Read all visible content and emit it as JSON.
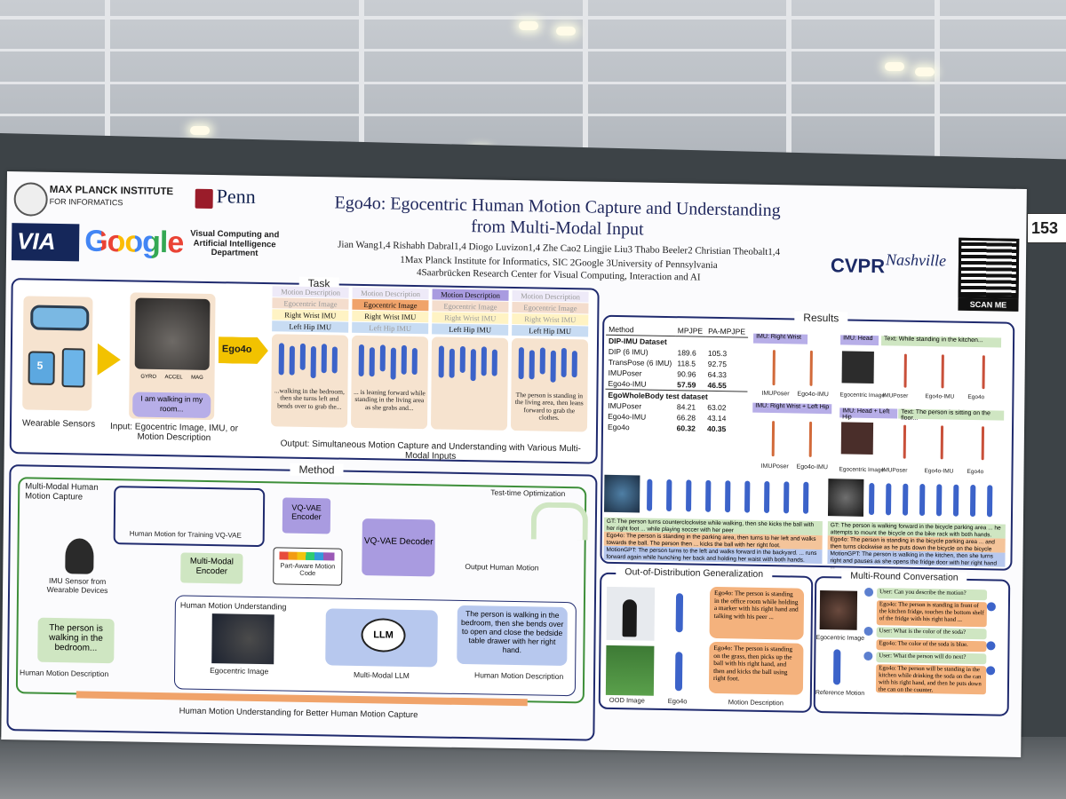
{
  "header": {
    "institute_line1": "MAX PLANCK INSTITUTE",
    "institute_line2": "FOR INFORMATICS",
    "penn": "Penn",
    "google": "Google",
    "dept_line1": "Visual Computing and",
    "dept_line2": "Artificial Intelligence",
    "dept_line3": "Department",
    "title_line1": "Ego4o: Egocentric Human Motion Capture and Understanding",
    "title_line2": "from Multi-Modal Input",
    "authors": "Jian Wang1,4  Rishabh Dabral1,4  Diogo Luvizon1,4  Zhe Cao2  Lingjie Liu3  Thabo Beeler2  Christian Theobalt1,4",
    "affil1": "1Max Planck Institute for Informatics, SIC  2Google  3University of Pennsylvania",
    "affil2": "4Saarbrücken Research Center for Visual Computing, Interaction and AI",
    "cvpr": "CVPR",
    "cvpr_script": "Nashville",
    "scan_me": "SCAN ME",
    "board_number": "153"
  },
  "task": {
    "title": "Task",
    "wearable_caption": "Wearable Sensors",
    "watch_number": "5",
    "sensor_labels": [
      "GYRO",
      "ACCEL",
      "MAG"
    ],
    "speech": "I am walking in my room...",
    "input_caption": "Input: Egocentric Image, IMU, or Motion Description",
    "model": "Ego4o",
    "columns": [
      {
        "rows": [
          "Motion Description",
          "Egocentric Image",
          "Right Wrist IMU",
          "Left Hip IMU"
        ],
        "caption": "...walking in the bedroom, then she turns left and bends over to grab the..."
      },
      {
        "rows": [
          "Motion Description",
          "Egocentric Image",
          "Right Wrist IMU",
          "Left Hip IMU"
        ],
        "caption": "... is leaning forward while standing in the living area as she grabs and..."
      },
      {
        "rows": [
          "Motion Description",
          "Egocentric Image",
          "Right Wrist IMU",
          "Left Hip IMU"
        ],
        "caption": ""
      },
      {
        "rows": [
          "Motion Description",
          "Egocentric Image",
          "Right Wrist IMU",
          "Left Hip IMU"
        ],
        "caption": "The person is standing in the living area, then leans forward to grab the clothes."
      }
    ],
    "output_caption": "Output: Simultaneous Motion Capture and Understanding with Various Multi-Modal Inputs"
  },
  "method": {
    "title": "Method",
    "capture_label": "Multi-Modal Human Motion Capture",
    "train_label": "Human Motion for Training VQ-VAE",
    "vq_encoder": "VQ-VAE Encoder",
    "vq_decoder": "VQ-VAE Decoder",
    "motion_code": "Part-Aware Motion Code",
    "mm_encoder": "Multi-Modal Encoder",
    "tto": "Test-time Optimization",
    "output_motion": "Output Human Motion",
    "imu_label": "IMU Sensor from Wearable Devices",
    "desc_bubble": "The person is walking in the bedroom...",
    "desc_label": "Human Motion Description",
    "understanding_label": "Human Motion Understanding",
    "ego_image_label": "Egocentric Image",
    "llm": "LLM",
    "llm_label": "Multi-Modal LLM",
    "output_text": "The person is walking in the bedroom, then she bends over to open and close the bedside table drawer with her right hand.",
    "output_text_label": "Human Motion Description",
    "feedback": "Human Motion Understanding for Better Human Motion Capture"
  },
  "results": {
    "title": "Results",
    "headers": [
      "Method",
      "MPJPE",
      "PA-MPJPE"
    ],
    "dataset1": "DIP-IMU Dataset",
    "rows1": [
      [
        "DIP (6 IMU)",
        "189.6",
        "105.3"
      ],
      [
        "TransPose (6 IMU)",
        "118.5",
        "92.75"
      ],
      [
        "IMUPoser",
        "90.96",
        "64.33"
      ],
      [
        "Ego4o-IMU",
        "57.59",
        "46.55"
      ]
    ],
    "dataset2": "EgoWholeBody test dataset",
    "rows2": [
      [
        "IMUPoser",
        "84.21",
        "63.02"
      ],
      [
        "Ego4o-IMU",
        "66.28",
        "43.14"
      ],
      [
        "Ego4o",
        "60.32",
        "40.35"
      ]
    ],
    "imu_tag1": "IMU: Right Wrist",
    "imu_tag2": "IMU: Right Wrist + Left Hip",
    "fig_labels_left": [
      "IMUPoser",
      "Ego4o-IMU"
    ],
    "imu_head": "IMU: Head",
    "text_head": "Text: While standing in the kitchen...",
    "imu_head_hip": "IMU: Head + Left Hip",
    "text_floor": "Text: The person is sitting on the floor...",
    "fig_labels_right": [
      "Egocentric Image",
      "IMUPoser",
      "Ego4o-IMU",
      "Ego4o"
    ],
    "gt_left": "GT: The person turns counterclockwise while walking, then she kicks the ball with her right foot ... while playing soccer with her peer",
    "ego_left": "Ego4o: The person is standing in the parking area, then turns to her left and walks towards the ball. The person then ... kicks the ball with her right foot.",
    "mgpt_left": "MotionGPT: The person turns to the left and walks forward in the backyard. ... runs forward again while hunching her back and holding her waist with both hands.",
    "gt_right": "GT: The person is walking forward in the bicycle parking area ... he attempts to mount the bicycle on the bike rack with both hands.",
    "ego_right": "Ego4o: The person is standing in the bicycle parking area ... and then turns clockwise as he puts down the bicycle on the bicycle parking rack.",
    "mgpt_right": "MotionGPT: The person is walking in the kitchen, then she turns right and pauses as she opens the fridge door with her right hand ..."
  },
  "ood": {
    "title": "Out-of-Distribution Generalization",
    "text1": "Ego4o: The person is standing in the office room while holding a marker with his right hand and talking with his peer ...",
    "text2": "Ego4o: The person is standing on the grass, then picks up the ball with his right hand, and then and kicks the ball using right foot.",
    "labels": [
      "OOD Image",
      "Ego4o",
      "Motion Description"
    ]
  },
  "conversation": {
    "title": "Multi-Round Conversation",
    "messages": [
      {
        "role": "user",
        "text": "User: Can you describe the motion?"
      },
      {
        "role": "bot",
        "text": "Ego4o: The person is standing in front of the kitchen fridge, touches the bottom shelf of the fridge with his right hand ..."
      },
      {
        "role": "user",
        "text": "User: What is the color of the soda?"
      },
      {
        "role": "bot",
        "text": "Ego4o: The color of the soda is blue."
      },
      {
        "role": "user",
        "text": "User: What the person will do next?"
      },
      {
        "role": "bot",
        "text": "Ego4o: The person will be standing in the kitchen while drinking the soda on the can with his right hand, and then he puts down the can on the counter."
      }
    ],
    "labels": [
      "Egocentric Image",
      "Reference Motion"
    ]
  },
  "colors": {
    "navy": "#1f2a6e",
    "green": "#3e8f3a",
    "purple_box": "#a99be0",
    "green_box": "#cfe6c2",
    "orange": "#f0a36a",
    "figure_blue": "#3c63c9"
  }
}
